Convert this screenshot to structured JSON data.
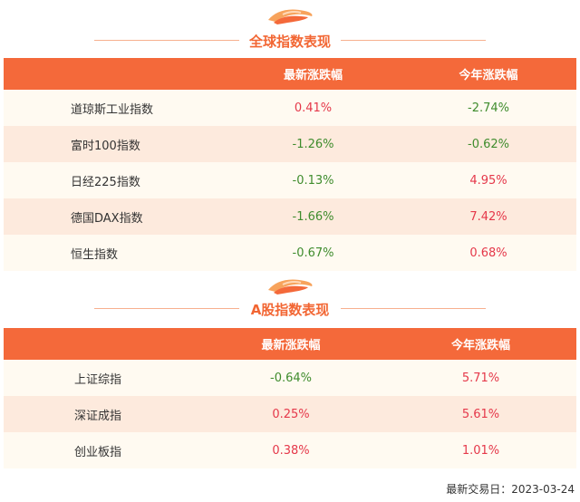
{
  "global": {
    "title": "全球指数表现",
    "columns": [
      "",
      "最新涨跌幅",
      "今年涨跌幅"
    ],
    "rows": [
      {
        "name": "道琼斯工业指数",
        "latest": "0.41%",
        "latest_dir": "up",
        "ytd": "-2.74%",
        "ytd_dir": "down"
      },
      {
        "name": "富时100指数",
        "latest": "-1.26%",
        "latest_dir": "down",
        "ytd": "-0.62%",
        "ytd_dir": "down"
      },
      {
        "name": "日经225指数",
        "latest": "-0.13%",
        "latest_dir": "down",
        "ytd": "4.95%",
        "ytd_dir": "up"
      },
      {
        "name": "德国DAX指数",
        "latest": "-1.66%",
        "latest_dir": "down",
        "ytd": "7.42%",
        "ytd_dir": "up"
      },
      {
        "name": "恒生指数",
        "latest": "-0.67%",
        "latest_dir": "down",
        "ytd": "0.68%",
        "ytd_dir": "up"
      }
    ]
  },
  "ashare": {
    "title": "A股指数表现",
    "columns": [
      "",
      "最新涨跌幅",
      "今年涨跌幅"
    ],
    "rows": [
      {
        "name": "上证综指",
        "latest": "-0.64%",
        "latest_dir": "down",
        "ytd": "5.71%",
        "ytd_dir": "up"
      },
      {
        "name": "深证成指",
        "latest": "0.25%",
        "latest_dir": "up",
        "ytd": "5.61%",
        "ytd_dir": "up"
      },
      {
        "name": "创业板指",
        "latest": "0.38%",
        "latest_dir": "up",
        "ytd": "1.01%",
        "ytd_dir": "up"
      }
    ]
  },
  "footer": {
    "date_label": "最新交易日：2023-03-24"
  },
  "colors": {
    "accent": "#f4693a",
    "up": "#e5384a",
    "down": "#3f8c2d",
    "row_odd": "#fffaf1",
    "row_even": "#fdeadd"
  },
  "icons": {
    "section_logo": "orange-swirl-logo-icon"
  }
}
